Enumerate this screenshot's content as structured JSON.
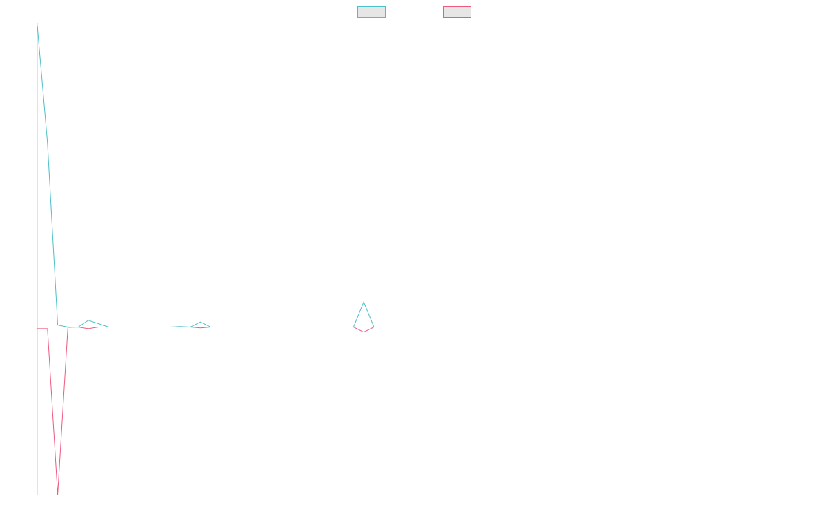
{
  "chart_data": {
    "type": "line",
    "title": "",
    "xlabel": "",
    "ylabel": "",
    "grid": false,
    "legend_position": "top-center",
    "x": [
      0,
      1,
      2,
      3,
      4,
      5,
      6,
      7,
      8,
      9,
      10,
      11,
      12,
      13,
      14,
      15,
      16,
      17,
      18,
      19,
      20,
      21,
      22,
      23,
      24,
      25,
      26,
      27,
      28,
      29,
      30,
      31,
      32,
      33,
      34,
      35,
      36,
      37,
      38,
      39,
      40,
      41,
      42,
      43,
      44,
      45,
      46,
      47,
      48,
      49,
      50,
      51,
      52,
      53,
      54,
      55,
      56,
      57,
      58,
      59,
      60,
      61,
      62,
      63,
      64,
      65,
      66,
      67,
      68,
      69,
      70,
      71,
      72,
      73,
      74,
      75
    ],
    "ylim": [
      -1.0,
      1.8
    ],
    "series": [
      {
        "color": "#4bbfc7",
        "values": [
          1.8,
          1.1,
          0.012,
          0.0,
          0.0,
          0.04,
          0.02,
          0.0,
          0.0,
          0.0,
          0.0,
          0.0,
          0.0,
          0.0,
          0.003,
          0.0,
          0.03,
          0.0,
          0.0,
          0.0,
          0.0,
          0.0,
          0.0,
          0.0,
          0.0,
          0.0,
          0.0,
          0.0,
          0.0,
          0.0,
          0.0,
          0.0,
          0.15,
          0.0,
          0.0,
          0.0,
          0.0,
          0.0,
          0.0,
          0.0,
          0.0,
          0.0,
          0.0,
          0.0,
          0.0,
          0.0,
          0.0,
          0.0,
          0.0,
          0.0,
          0.0,
          0.0,
          0.0,
          0.0,
          0.0,
          0.0,
          0.0,
          0.0,
          0.0,
          0.0,
          0.0,
          0.0,
          0.0,
          0.0,
          0.0,
          0.0,
          0.0,
          0.0,
          0.0,
          0.0,
          0.0,
          0.0,
          0.0,
          0.0,
          0.0,
          0.0
        ]
      },
      {
        "color": "#ef5a7f",
        "values": [
          -0.01,
          -0.01,
          -1.0,
          -0.002,
          0.0,
          -0.01,
          0.0,
          0.0,
          0.0,
          0.0,
          0.0,
          0.0,
          0.0,
          0.0,
          0.0,
          0.0,
          -0.005,
          0.0,
          0.0,
          0.0,
          0.0,
          0.0,
          0.0,
          0.0,
          0.0,
          0.0,
          0.0,
          0.0,
          0.0,
          0.0,
          0.0,
          0.0,
          -0.03,
          0.0,
          0.0,
          0.0,
          0.0,
          0.0,
          0.0,
          0.0,
          0.0,
          0.0,
          0.0,
          0.0,
          0.0,
          0.0,
          0.0,
          0.0,
          0.0,
          0.0,
          0.0,
          0.0,
          0.0,
          0.0,
          0.0,
          0.0,
          0.0,
          0.0,
          0.0,
          0.0,
          0.0,
          0.0,
          0.0,
          0.0,
          0.0,
          0.0,
          0.0,
          0.0,
          0.0,
          0.0,
          0.0,
          0.0,
          0.0,
          0.0,
          0.0,
          0.0
        ]
      }
    ]
  }
}
